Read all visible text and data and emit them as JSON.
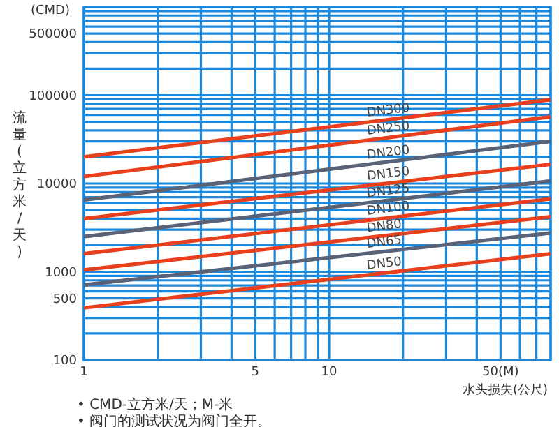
{
  "chart_data": {
    "type": "line",
    "ylabel": "流量(立方米/天)",
    "xlabel": "水头损失(公尺)",
    "log": "xy",
    "grid": true,
    "xlim": [
      1,
      80
    ],
    "xticks": [
      1,
      5,
      10,
      {
        "value": 50,
        "label": "50(M)"
      }
    ],
    "ylim": [
      100,
      1000000
    ],
    "yticks": [
      100,
      500,
      1000,
      10000,
      100000,
      500000
    ],
    "x": [
      1,
      80
    ],
    "line_style": "solid",
    "marker": "none",
    "series": [
      {
        "name": "DN300",
        "color": "#e8401c",
        "values": [
          20000,
          89000
        ]
      },
      {
        "name": "DN250",
        "color": "#e8401c",
        "values": [
          12000,
          57000
        ]
      },
      {
        "name": "DN200",
        "color": "#5a6278",
        "values": [
          6500,
          30000
        ]
      },
      {
        "name": "DN150",
        "color": "#e8401c",
        "values": [
          4000,
          16500
        ]
      },
      {
        "name": "DN125",
        "color": "#5a6278",
        "values": [
          2500,
          10700
        ]
      },
      {
        "name": "DN100",
        "color": "#e8401c",
        "values": [
          1600,
          6700
        ]
      },
      {
        "name": "DN80",
        "color": "#e8401c",
        "values": [
          1050,
          4200
        ]
      },
      {
        "name": "DN65",
        "color": "#5a6278",
        "values": [
          710,
          2750
        ]
      },
      {
        "name": "DN50",
        "color": "#e8401c",
        "values": [
          390,
          1600
        ]
      }
    ],
    "annotations": [
      "(CMD)",
      "• CMD-立方米/天；M-米",
      "• 阀门的测试状况为阀门全开。"
    ]
  }
}
